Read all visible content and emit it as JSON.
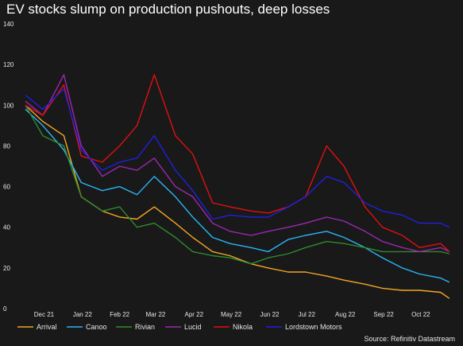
{
  "chart_data": {
    "type": "line",
    "title": "EV stocks slump on production pushouts, deep losses",
    "source": "Source: Refinitiv Datastream",
    "ylim": [
      0,
      140
    ],
    "yticks": [
      0,
      20,
      40,
      60,
      80,
      100,
      120,
      140
    ],
    "grid": false,
    "legend_position": "bottom",
    "x": [
      "2021-12-01",
      "2021-12-15",
      "2022-01-01",
      "2022-01-15",
      "2022-02-01",
      "2022-02-15",
      "2022-03-01",
      "2022-03-15",
      "2022-04-01",
      "2022-04-15",
      "2022-05-01",
      "2022-05-15",
      "2022-06-01",
      "2022-06-15",
      "2022-07-01",
      "2022-07-15",
      "2022-08-01",
      "2022-08-15",
      "2022-09-01",
      "2022-09-15",
      "2022-10-01",
      "2022-10-15",
      "2022-11-01",
      "2022-11-08"
    ],
    "xtick_labels": [
      "Dec 21",
      "Jan 22",
      "Feb 22",
      "Mar 22",
      "Apr 22",
      "May 22",
      "Jun 22",
      "Jul 22",
      "Aug 22",
      "Sep 22",
      "Oct 22"
    ],
    "series": [
      {
        "name": "Arrival",
        "color": "#f5a623",
        "values": [
          100,
          92,
          85,
          55,
          48,
          45,
          44,
          50,
          42,
          35,
          28,
          26,
          22,
          20,
          18,
          18,
          16,
          14,
          12,
          10,
          9,
          9,
          8,
          5
        ]
      },
      {
        "name": "Canoo",
        "color": "#29b6f6",
        "values": [
          98,
          90,
          78,
          62,
          58,
          60,
          56,
          65,
          55,
          45,
          35,
          32,
          30,
          28,
          34,
          36,
          38,
          35,
          30,
          25,
          20,
          17,
          15,
          13
        ]
      },
      {
        "name": "Rivian",
        "color": "#2e8b2e",
        "values": [
          100,
          85,
          80,
          55,
          48,
          50,
          40,
          42,
          35,
          28,
          26,
          25,
          22,
          25,
          27,
          30,
          33,
          32,
          30,
          28,
          28,
          28,
          28,
          27
        ]
      },
      {
        "name": "Lucid",
        "color": "#9c27b0",
        "values": [
          102,
          95,
          115,
          80,
          65,
          70,
          68,
          74,
          60,
          55,
          42,
          38,
          36,
          38,
          40,
          42,
          45,
          43,
          38,
          33,
          30,
          28,
          30,
          28
        ]
      },
      {
        "name": "Nikola",
        "color": "#e01010",
        "values": [
          100,
          95,
          110,
          75,
          72,
          80,
          90,
          115,
          85,
          76,
          52,
          50,
          48,
          47,
          50,
          55,
          80,
          70,
          50,
          40,
          36,
          30,
          32,
          28
        ]
      },
      {
        "name": "Lordstown Motors",
        "color": "#2020e0",
        "values": [
          105,
          98,
          108,
          78,
          68,
          72,
          74,
          85,
          68,
          58,
          44,
          46,
          45,
          45,
          50,
          55,
          65,
          62,
          52,
          48,
          46,
          42,
          42,
          40
        ]
      }
    ]
  }
}
